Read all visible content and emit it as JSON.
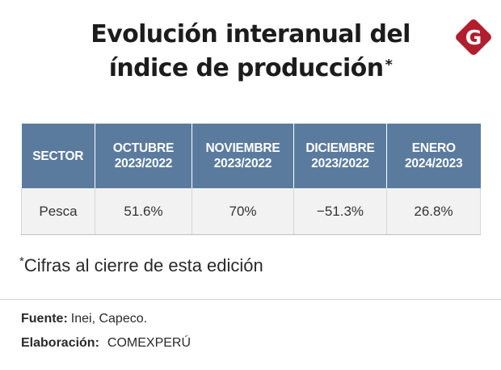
{
  "chart_data": {
    "type": "table",
    "title": {
      "line1": "Evolución interanual del",
      "line2": "índice de producción",
      "marker": "*"
    },
    "columns": [
      {
        "line1": "SECTOR",
        "line2": ""
      },
      {
        "line1": "OCTUBRE",
        "line2": "2023/2022"
      },
      {
        "line1": "NOVIEMBRE",
        "line2": "2023/2022"
      },
      {
        "line1": "DICIEMBRE",
        "line2": "2023/2022"
      },
      {
        "line1": "ENERO",
        "line2": "2024/2023"
      }
    ],
    "rows": [
      {
        "sector": "Pesca",
        "values": [
          51.6,
          70,
          -51.3,
          26.8
        ],
        "display": [
          "51.6%",
          "70%",
          "−51.3%",
          "26.8%"
        ]
      }
    ],
    "unit": "%"
  },
  "footnote": {
    "marker": "*",
    "text": "Cifras al cierre de esta edición"
  },
  "sources": {
    "fuente_label": "Fuente:",
    "fuente_value": "Inei, Capeco.",
    "elaboracion_label": "Elaboración:",
    "elaboracion_value": "COMEXPERÚ"
  },
  "logo": {
    "icon": "g-diamond-logo-icon",
    "letter": "G",
    "color": "#b01e2f"
  },
  "colors": {
    "header_bg": "#5b7b9e",
    "header_text": "#ffffff",
    "row_bg": "#f2f2f2"
  }
}
